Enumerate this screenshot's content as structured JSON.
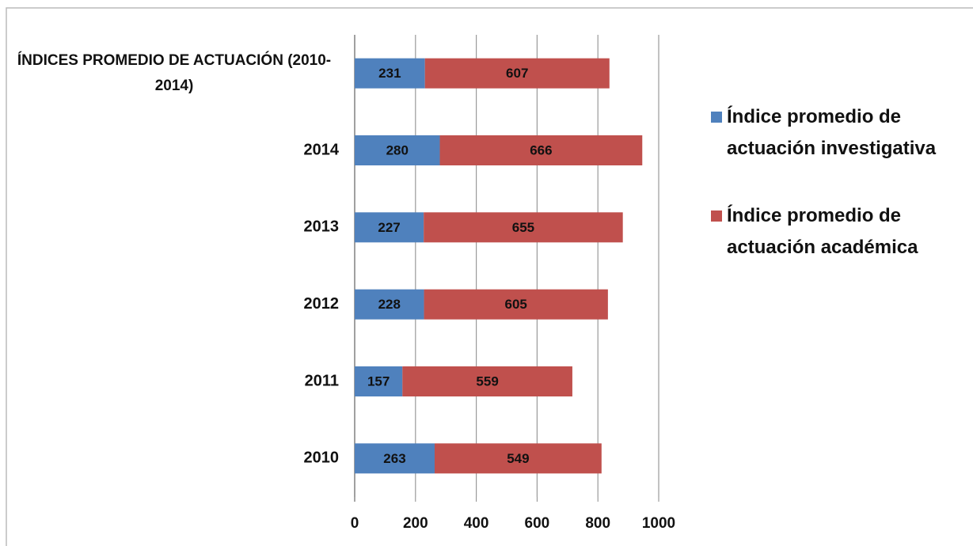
{
  "chart_data": {
    "type": "stacked-barh",
    "categories": [
      "ÍNDICES PROMEDIO DE ACTUACIÓN (2010-2014)",
      "2014",
      "2013",
      "2012",
      "2011",
      "2010"
    ],
    "series": [
      {
        "name": "Índice promedio de actuación investigativa",
        "color": "#4f81bd",
        "values": [
          231,
          280,
          227,
          228,
          157,
          263
        ]
      },
      {
        "name": "Índice promedio de actuación académica",
        "color": "#c0504d",
        "values": [
          607,
          666,
          655,
          605,
          559,
          549
        ]
      }
    ],
    "xlim": [
      0,
      1000
    ],
    "xticks": [
      0,
      200,
      400,
      600,
      800,
      1000
    ],
    "grid": true,
    "legend": "right"
  }
}
